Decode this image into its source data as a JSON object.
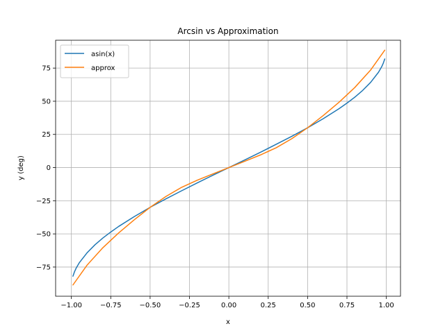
{
  "chart_data": {
    "type": "line",
    "title": "Arcsin vs Approximation",
    "xlabel": "x",
    "ylabel": "y (deg)",
    "xlim": [
      -1.1,
      1.09
    ],
    "ylim": [
      -97,
      96
    ],
    "xticks": [
      -1.0,
      -0.75,
      -0.5,
      -0.25,
      0.0,
      0.25,
      0.5,
      0.75,
      1.0
    ],
    "xtick_labels": [
      "−1.00",
      "−0.75",
      "−0.50",
      "−0.25",
      "0.00",
      "0.25",
      "0.50",
      "0.75",
      "1.00"
    ],
    "yticks": [
      -75,
      -50,
      -25,
      0,
      25,
      50,
      75
    ],
    "ytick_labels": [
      "−75",
      "−50",
      "−25",
      "0",
      "25",
      "50",
      "75"
    ],
    "grid": true,
    "legend_position": "top-left",
    "series": [
      {
        "name": "asin(x)",
        "color": "#1f77b4",
        "x": [
          -0.99,
          -0.98,
          -0.97,
          -0.95,
          -0.9,
          -0.85,
          -0.8,
          -0.75,
          -0.7,
          -0.6,
          -0.5,
          -0.4,
          -0.3,
          -0.2,
          -0.1,
          0.0,
          0.1,
          0.2,
          0.3,
          0.4,
          0.5,
          0.6,
          0.7,
          0.75,
          0.8,
          0.85,
          0.9,
          0.95,
          0.97,
          0.98,
          0.99
        ],
        "y": [
          -81.9,
          -78.5,
          -75.9,
          -71.8,
          -64.2,
          -58.2,
          -53.1,
          -48.6,
          -44.4,
          -36.9,
          -30.0,
          -23.6,
          -17.5,
          -11.5,
          -5.7,
          0.0,
          5.7,
          11.5,
          17.5,
          23.6,
          30.0,
          36.9,
          44.4,
          48.6,
          53.1,
          58.2,
          64.2,
          71.8,
          75.9,
          78.5,
          81.9
        ]
      },
      {
        "name": "approx",
        "color": "#ff7f0e",
        "x": [
          -0.99,
          -0.9,
          -0.8,
          -0.7,
          -0.6,
          -0.5,
          -0.4,
          -0.3,
          -0.2,
          -0.1,
          0.0,
          0.1,
          0.2,
          0.3,
          0.4,
          0.5,
          0.6,
          0.7,
          0.8,
          0.9,
          0.99
        ],
        "y": [
          -88.5,
          -73.5,
          -60.4,
          -49.3,
          -39.3,
          -30.0,
          -21.8,
          -14.9,
          -9.5,
          -4.7,
          0.0,
          4.7,
          9.5,
          14.9,
          21.8,
          30.0,
          39.3,
          49.3,
          60.4,
          73.5,
          88.5
        ]
      }
    ]
  }
}
